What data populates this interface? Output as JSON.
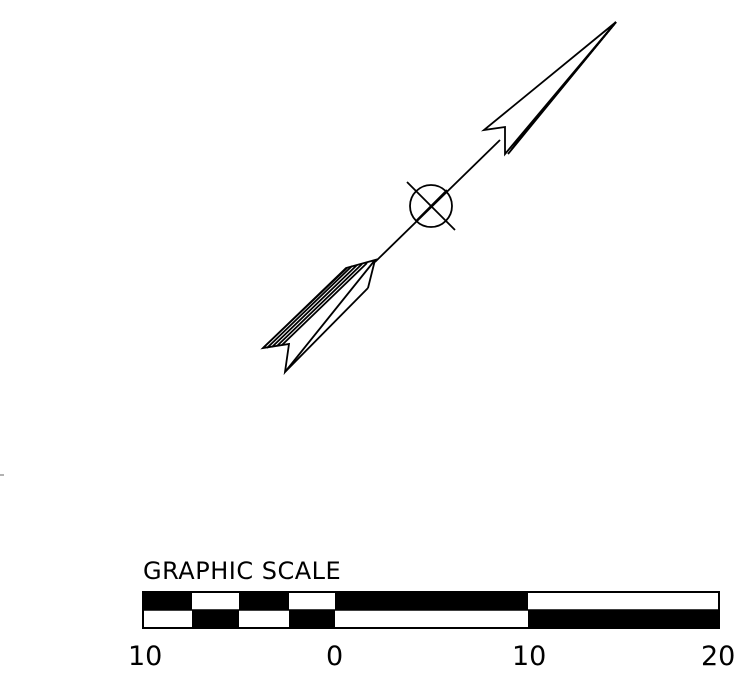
{
  "graphic_scale": {
    "title": "GRAPHIC SCALE",
    "tick_labels": [
      "10",
      "0",
      "10",
      "20"
    ]
  },
  "north_arrow": {
    "type": "north-arrow",
    "symbol": "circle-with-cross"
  },
  "colors": {
    "ink": "#000000",
    "paper": "#ffffff"
  }
}
